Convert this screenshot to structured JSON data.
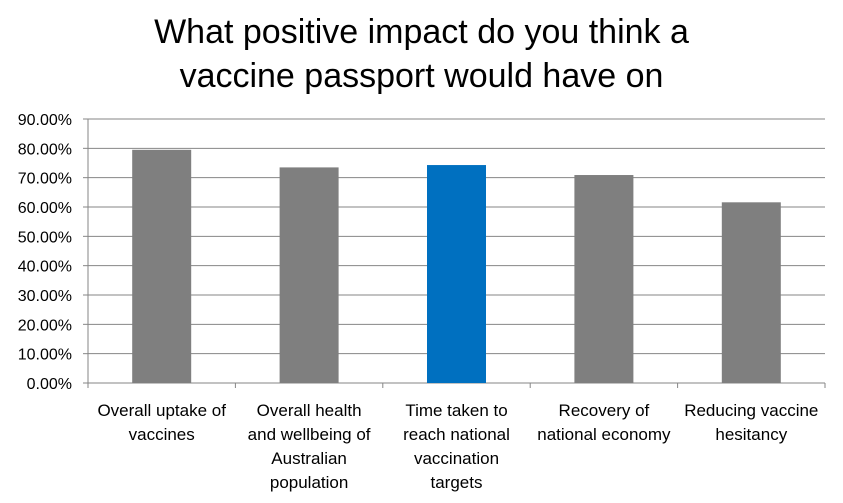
{
  "chart_data": {
    "type": "bar",
    "title_lines": [
      "What positive impact do you think a",
      "vaccine passport would have on"
    ],
    "categories": [
      [
        "Overall uptake of",
        "vaccines"
      ],
      [
        "Overall health",
        "and wellbeing of",
        "Australian",
        "population"
      ],
      [
        "Time taken to",
        "reach national",
        "vaccination",
        "targets"
      ],
      [
        "Recovery of",
        "national economy"
      ],
      [
        "Reducing vaccine",
        "hesitancy"
      ]
    ],
    "values": [
      0.795,
      0.735,
      0.743,
      0.709,
      0.616
    ],
    "bar_colors": [
      "#7f7f7f",
      "#7f7f7f",
      "#0070c0",
      "#7f7f7f",
      "#7f7f7f"
    ],
    "y_ticks": [
      "0.00%",
      "10.00%",
      "20.00%",
      "30.00%",
      "40.00%",
      "50.00%",
      "60.00%",
      "70.00%",
      "80.00%",
      "90.00%"
    ],
    "ylim": [
      0,
      0.9
    ],
    "grid": true,
    "legend": "none"
  }
}
